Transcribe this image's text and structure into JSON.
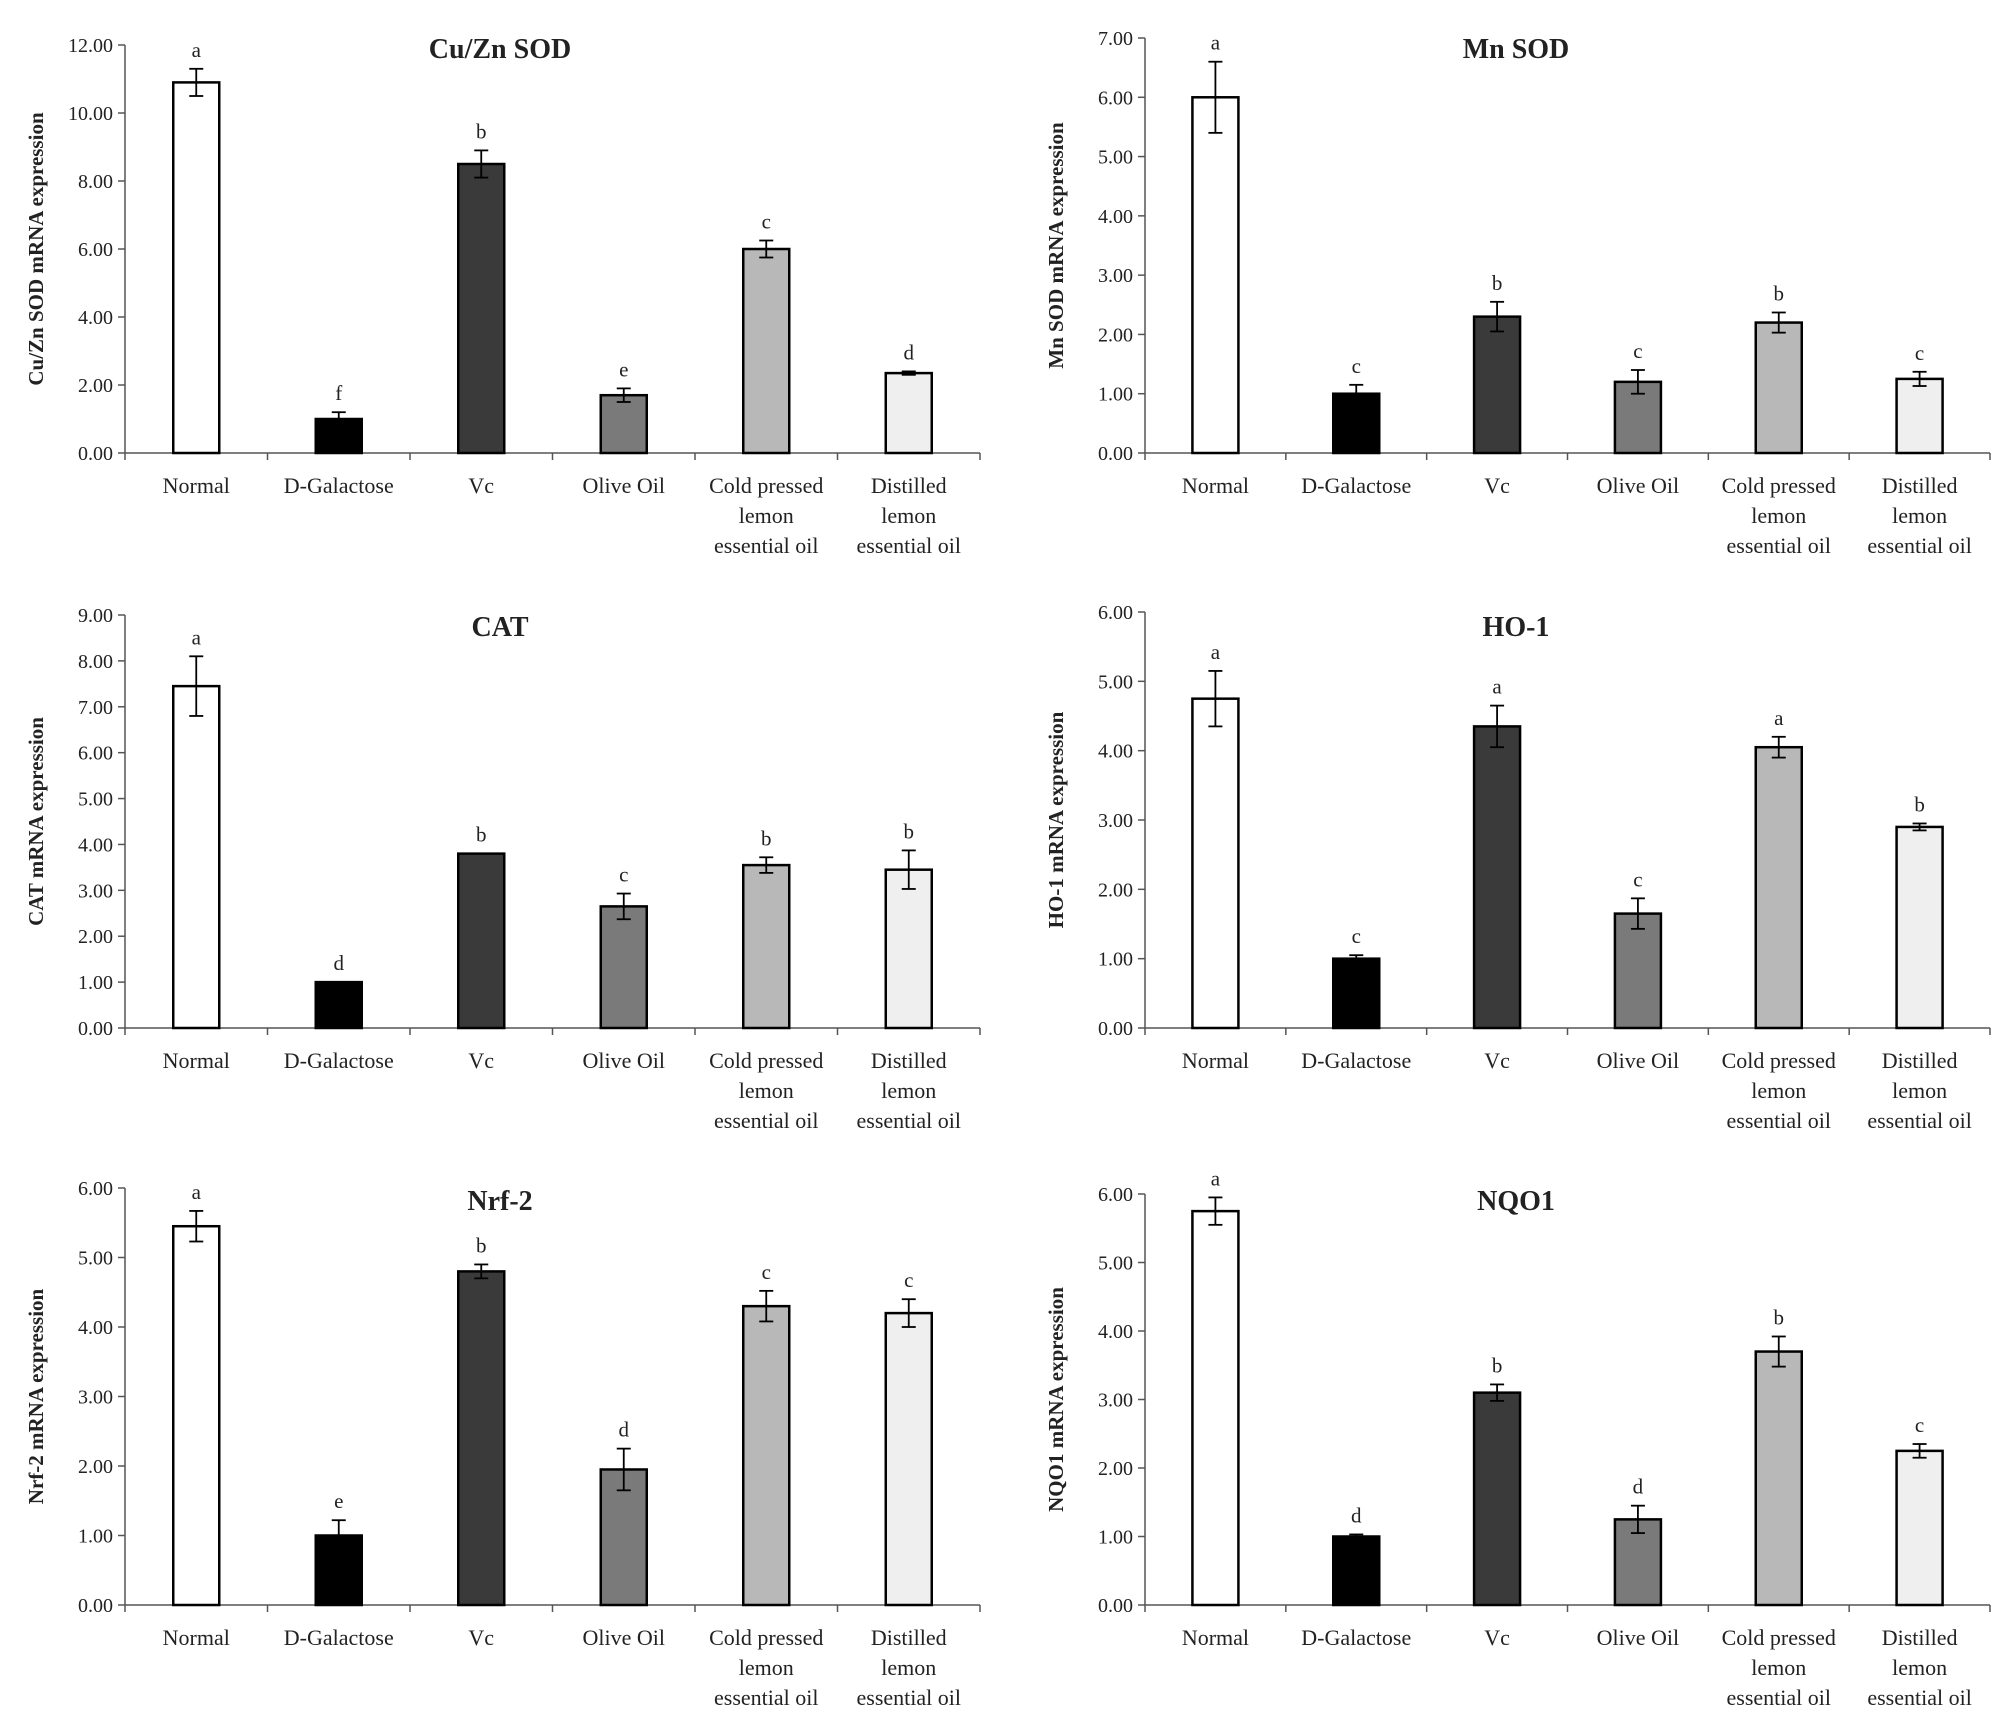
{
  "figure": {
    "colors": [
      "#ffffff",
      "#000000",
      "#3a3a3a",
      "#7a7a7a",
      "#b8b8b8",
      "#efefef"
    ]
  },
  "chart_data": [
    {
      "type": "bar",
      "title": "Cu/Zn SOD",
      "ylabel": "Cu/Zn SOD mRNA expression",
      "categories": [
        "Normal",
        "D-Galactose",
        "Vc",
        "Olive Oil",
        "Cold pressed lemon essential oil",
        "Distilled lemon essential oil"
      ],
      "category_lines": [
        [
          "Normal"
        ],
        [
          "D-Galactose"
        ],
        [
          "Vc"
        ],
        [
          "Olive Oil"
        ],
        [
          "Cold pressed",
          "lemon",
          "essential oil"
        ],
        [
          "Distilled",
          "lemon",
          "essential oil"
        ]
      ],
      "values": [
        10.9,
        1.0,
        8.5,
        1.7,
        6.0,
        2.35
      ],
      "errors": [
        0.4,
        0.2,
        0.4,
        0.2,
        0.25,
        0.05
      ],
      "significance": [
        "a",
        "f",
        "b",
        "e",
        "c",
        "d"
      ],
      "ylim": [
        0,
        12
      ],
      "yticks": [
        "0.00",
        "2.00",
        "4.00",
        "6.00",
        "8.00",
        "10.00",
        "12.00"
      ]
    },
    {
      "type": "bar",
      "title": "Mn SOD",
      "ylabel": "Mn SOD mRNA expression",
      "categories": [
        "Normal",
        "D-Galactose",
        "Vc",
        "Olive Oil",
        "Cold pressed lemon essential oil",
        "Distilled lemon essential oil"
      ],
      "category_lines": [
        [
          "Normal"
        ],
        [
          "D-Galactose"
        ],
        [
          "Vc"
        ],
        [
          "Olive Oil"
        ],
        [
          "Cold pressed",
          "lemon",
          "essential oil"
        ],
        [
          "Distilled",
          "lemon",
          "essential oil"
        ]
      ],
      "values": [
        6.0,
        1.0,
        2.3,
        1.2,
        2.2,
        1.25
      ],
      "errors": [
        0.6,
        0.15,
        0.25,
        0.2,
        0.17,
        0.12
      ],
      "significance": [
        "a",
        "c",
        "b",
        "c",
        "b",
        "c"
      ],
      "ylim": [
        0,
        7
      ],
      "yticks": [
        "0.00",
        "1.00",
        "2.00",
        "3.00",
        "4.00",
        "5.00",
        "6.00",
        "7.00"
      ]
    },
    {
      "type": "bar",
      "title": "CAT",
      "ylabel": "CAT mRNA expression",
      "categories": [
        "Normal",
        "D-Galactose",
        "Vc",
        "Olive Oil",
        "Cold pressed lemon essential oil",
        "Distilled lemon essential oil"
      ],
      "category_lines": [
        [
          "Normal"
        ],
        [
          "D-Galactose"
        ],
        [
          "Vc"
        ],
        [
          "Olive Oil"
        ],
        [
          "Cold pressed",
          "lemon",
          "essential oil"
        ],
        [
          "Distilled",
          "lemon",
          "essential oil"
        ]
      ],
      "values": [
        7.45,
        1.0,
        3.8,
        2.65,
        3.55,
        3.45
      ],
      "errors": [
        0.65,
        0.0,
        0.0,
        0.28,
        0.17,
        0.42
      ],
      "significance": [
        "a",
        "d",
        "b",
        "c",
        "b",
        "b"
      ],
      "ylim": [
        0,
        9
      ],
      "yticks": [
        "0.00",
        "1.00",
        "2.00",
        "3.00",
        "4.00",
        "5.00",
        "6.00",
        "7.00",
        "8.00",
        "9.00"
      ]
    },
    {
      "type": "bar",
      "title": "HO-1",
      "ylabel": "HO-1 mRNA expression",
      "categories": [
        "Normal",
        "D-Galactose",
        "Vc",
        "Olive Oil",
        "Cold pressed lemon essential oil",
        "Distilled lemon essential oil"
      ],
      "category_lines": [
        [
          "Normal"
        ],
        [
          "D-Galactose"
        ],
        [
          "Vc"
        ],
        [
          "Olive Oil"
        ],
        [
          "Cold pressed",
          "lemon",
          "essential oil"
        ],
        [
          "Distilled",
          "lemon",
          "essential oil"
        ]
      ],
      "values": [
        4.75,
        1.0,
        4.35,
        1.65,
        4.05,
        2.9
      ],
      "errors": [
        0.4,
        0.05,
        0.3,
        0.22,
        0.15,
        0.05
      ],
      "significance": [
        "a",
        "c",
        "a",
        "c",
        "a",
        "b"
      ],
      "ylim": [
        0,
        6
      ],
      "yticks": [
        "0.00",
        "1.00",
        "2.00",
        "3.00",
        "4.00",
        "5.00",
        "6.00"
      ]
    },
    {
      "type": "bar",
      "title": "Nrf-2",
      "ylabel": "Nrf-2 mRNA expression",
      "categories": [
        "Normal",
        "D-Galactose",
        "Vc",
        "Olive Oil",
        "Cold pressed lemon essential oil",
        "Distilled lemon essential oil"
      ],
      "category_lines": [
        [
          "Normal"
        ],
        [
          "D-Galactose"
        ],
        [
          "Vc"
        ],
        [
          "Olive Oil"
        ],
        [
          "Cold pressed",
          "lemon",
          "essential oil"
        ],
        [
          "Distilled",
          "lemon",
          "essential oil"
        ]
      ],
      "values": [
        5.45,
        1.0,
        4.8,
        1.95,
        4.3,
        4.2
      ],
      "errors": [
        0.22,
        0.22,
        0.1,
        0.3,
        0.22,
        0.2
      ],
      "significance": [
        "a",
        "e",
        "b",
        "d",
        "c",
        "c"
      ],
      "ylim": [
        0,
        6
      ],
      "yticks": [
        "0.00",
        "1.00",
        "2.00",
        "3.00",
        "4.00",
        "5.00",
        "6.00"
      ]
    },
    {
      "type": "bar",
      "title": "NQO1",
      "ylabel": "NQO1 mRNA expression",
      "categories": [
        "Normal",
        "D-Galactose",
        "Vc",
        "Olive Oil",
        "Cold pressed lemon essential oil",
        "Distilled lemon essential oil"
      ],
      "category_lines": [
        [
          "Normal"
        ],
        [
          "D-Galactose"
        ],
        [
          "Vc"
        ],
        [
          "Olive Oil"
        ],
        [
          "Cold pressed",
          "lemon",
          "essential oil"
        ],
        [
          "Distilled",
          "lemon",
          "essential oil"
        ]
      ],
      "values": [
        5.75,
        1.0,
        3.1,
        1.25,
        3.7,
        2.25
      ],
      "errors": [
        0.2,
        0.03,
        0.12,
        0.2,
        0.22,
        0.1
      ],
      "significance": [
        "a",
        "d",
        "b",
        "d",
        "b",
        "c"
      ],
      "ylim": [
        0,
        6
      ],
      "yticks": [
        "0.00",
        "1.00",
        "2.00",
        "3.00",
        "4.00",
        "5.00",
        "6.00"
      ]
    }
  ]
}
